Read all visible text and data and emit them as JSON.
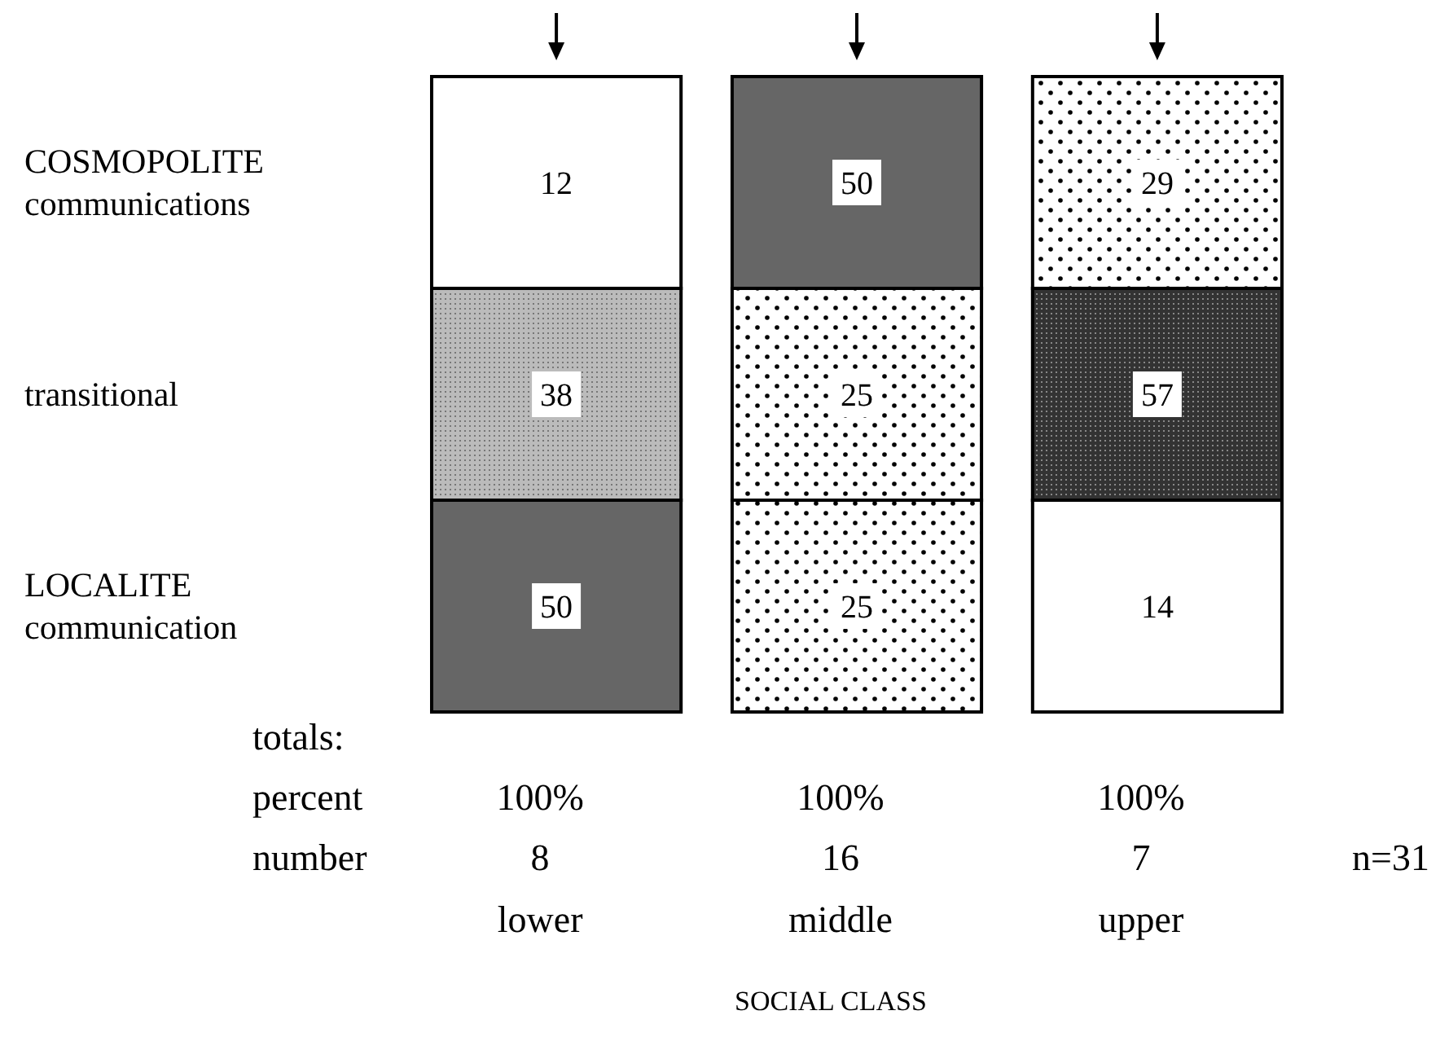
{
  "chart_data": {
    "type": "heatmap",
    "categories": [
      "lower",
      "middle",
      "upper"
    ],
    "y_categories": [
      "COSMOPOLITE\ncommunications",
      "transitional",
      "LOCALITE\ncommunication"
    ],
    "cells": [
      [
        12,
        50,
        29
      ],
      [
        38,
        25,
        57
      ],
      [
        50,
        25,
        14
      ]
    ],
    "xlabel": "SOCIAL CLASS",
    "data_labels": true,
    "annotations": [
      "totals:",
      "percent",
      "number",
      "100%",
      "100%",
      "100%",
      "8",
      "16",
      "7",
      "n=31"
    ]
  }
}
